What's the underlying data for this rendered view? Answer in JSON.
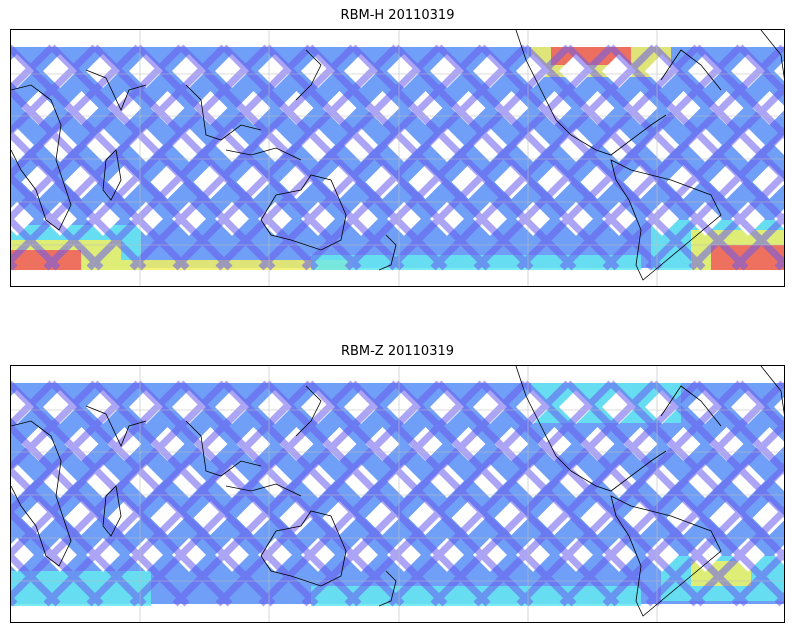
{
  "figure": {
    "panels": [
      {
        "title": "RBM-H 20110319",
        "colormap": "jet"
      },
      {
        "title": "RBM-Z 20110319",
        "colormap": "jet"
      }
    ]
  },
  "colors": {
    "low": "#6a5cf0",
    "mid_low": "#5f95f5",
    "mid": "#66e8f0",
    "mid_high": "#f2f060",
    "high": "#f05a5a",
    "coastline": "#000000",
    "grid": "#bdbdbd"
  }
}
